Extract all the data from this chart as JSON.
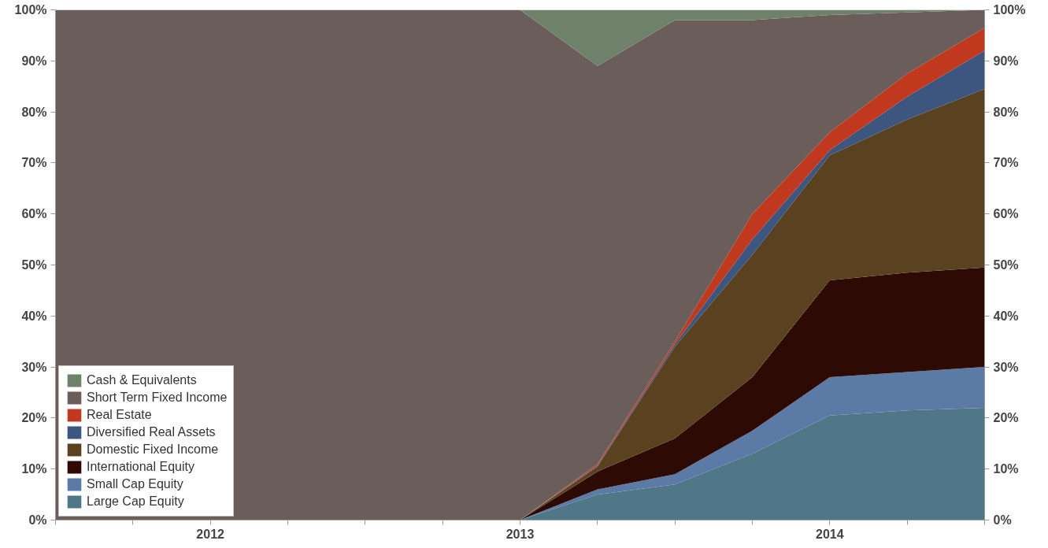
{
  "chart_data": {
    "type": "area",
    "stacked": true,
    "legend": "bottom left",
    "grid": false,
    "x": [
      2011.5,
      2011.75,
      2012.0,
      2012.25,
      2012.5,
      2012.75,
      2013.0,
      2013.25,
      2013.5,
      2013.75,
      2014.0,
      2014.25,
      2014.5
    ],
    "xlim": [
      2011.5,
      2014.5
    ],
    "xticks": [
      {
        "value": 2011.5,
        "label": null
      },
      {
        "value": 2011.75,
        "label": null
      },
      {
        "value": 2012.0,
        "label": "2012"
      },
      {
        "value": 2012.25,
        "label": null
      },
      {
        "value": 2012.5,
        "label": null
      },
      {
        "value": 2012.75,
        "label": null
      },
      {
        "value": 2013.0,
        "label": "2013"
      },
      {
        "value": 2013.25,
        "label": null
      },
      {
        "value": 2013.5,
        "label": null
      },
      {
        "value": 2013.75,
        "label": null
      },
      {
        "value": 2014.0,
        "label": "2014"
      },
      {
        "value": 2014.25,
        "label": null
      },
      {
        "value": 2014.5,
        "label": null
      }
    ],
    "ylim": [
      0,
      100
    ],
    "yticks": [
      {
        "value": 0,
        "label": "0%"
      },
      {
        "value": 10,
        "label": "10%"
      },
      {
        "value": 20,
        "label": "20%"
      },
      {
        "value": 30,
        "label": "30%"
      },
      {
        "value": 40,
        "label": "40%"
      },
      {
        "value": 50,
        "label": "50%"
      },
      {
        "value": 60,
        "label": "60%"
      },
      {
        "value": 70,
        "label": "70%"
      },
      {
        "value": 80,
        "label": "80%"
      },
      {
        "value": 90,
        "label": "90%"
      },
      {
        "value": 100,
        "label": "100%"
      }
    ],
    "y2lim": [
      0,
      100
    ],
    "y2ticks": [
      {
        "value": 0,
        "label": "0%"
      },
      {
        "value": 10,
        "label": "10%"
      },
      {
        "value": 20,
        "label": "20%"
      },
      {
        "value": 30,
        "label": "30%"
      },
      {
        "value": 40,
        "label": "40%"
      },
      {
        "value": 50,
        "label": "50%"
      },
      {
        "value": 60,
        "label": "60%"
      },
      {
        "value": 70,
        "label": "70%"
      },
      {
        "value": 80,
        "label": "80%"
      },
      {
        "value": 90,
        "label": "90%"
      },
      {
        "value": 100,
        "label": "100%"
      }
    ],
    "series": [
      {
        "name": "Large Cap Equity",
        "color": "#4f7788",
        "values": [
          0,
          0,
          0,
          0,
          0,
          0,
          0,
          5,
          7,
          13,
          20.5,
          21.5,
          22
        ]
      },
      {
        "name": "Small Cap Equity",
        "color": "#5b7aa5",
        "values": [
          0,
          0,
          0,
          0,
          0,
          0,
          0,
          1,
          2,
          4.5,
          7.5,
          7.5,
          8
        ]
      },
      {
        "name": "International Equity",
        "color": "#2e0a04",
        "values": [
          0,
          0,
          0,
          0,
          0,
          0,
          0,
          3.5,
          7,
          10.5,
          19,
          19.5,
          19.5
        ]
      },
      {
        "name": "Domestic Fixed Income",
        "color": "#5a4120",
        "values": [
          0,
          0,
          0,
          0,
          0,
          0,
          0,
          1,
          18,
          24,
          24.5,
          30,
          35
        ]
      },
      {
        "name": "Diversified Real Assets",
        "color": "#3c5680",
        "values": [
          0,
          0,
          0,
          0,
          0,
          0,
          0,
          0.2,
          0.5,
          3,
          1,
          4.5,
          7.5
        ]
      },
      {
        "name": "Real Estate",
        "color": "#c0391f",
        "values": [
          0,
          0,
          0,
          0,
          0,
          0,
          0,
          0.3,
          0.5,
          5,
          3.5,
          4.5,
          4.5
        ]
      },
      {
        "name": "Short Term Fixed Income",
        "color": "#6b5d5a",
        "values": [
          100,
          100,
          100,
          100,
          100,
          100,
          100,
          78,
          63,
          38,
          23,
          12,
          3.5
        ]
      },
      {
        "name": "Cash & Equivalents",
        "color": "#6f806b",
        "values": [
          0,
          0,
          0,
          0,
          0,
          0,
          0,
          11,
          2,
          2,
          1,
          0.5,
          0
        ]
      }
    ]
  }
}
